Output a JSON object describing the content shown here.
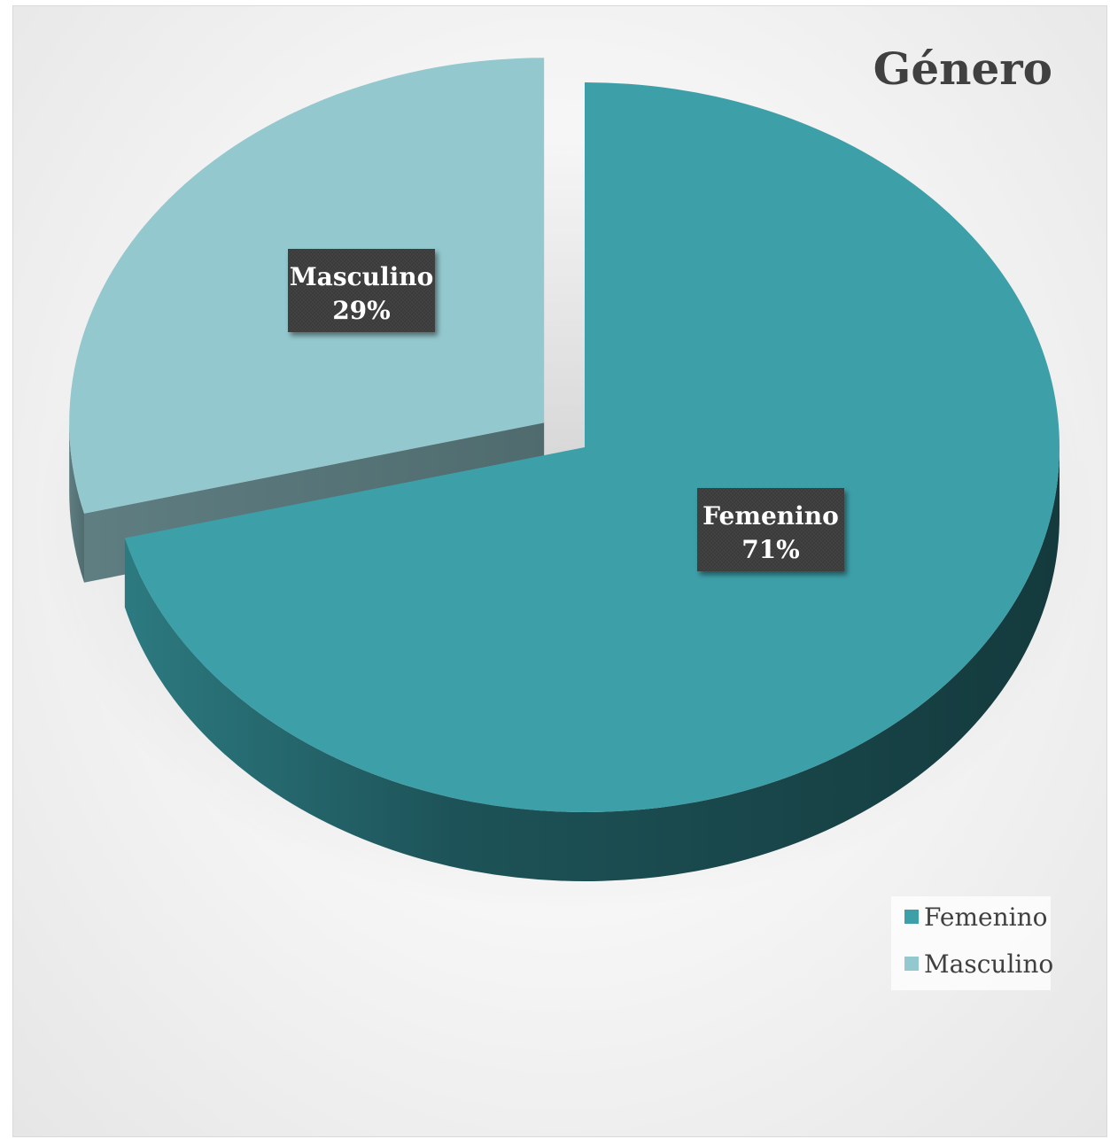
{
  "chart_data": {
    "type": "pie",
    "title": "Género",
    "categories": [
      "Femenino",
      "Masculino"
    ],
    "values": [
      71,
      29
    ],
    "data_labels": [
      {
        "name": "Femenino",
        "value_text": "71%"
      },
      {
        "name": "Masculino",
        "value_text": "29%"
      }
    ],
    "colors": [
      "#3d9fa8",
      "#93c8ce"
    ],
    "legend": {
      "placement": "right",
      "entries": [
        "Femenino",
        "Masculino"
      ]
    },
    "exploded": [
      "Masculino"
    ],
    "style": "3d"
  }
}
